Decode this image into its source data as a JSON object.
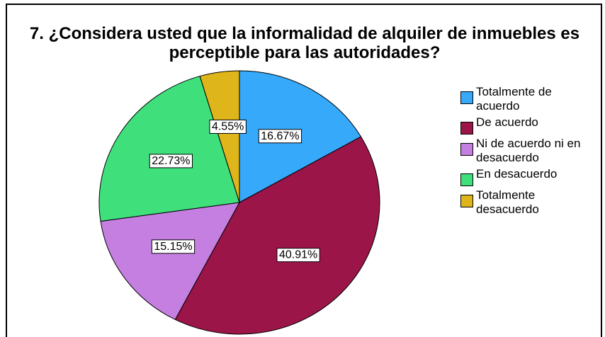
{
  "chart_data": {
    "type": "pie",
    "title": "7. ¿Considera usted que la informalidad de alquiler de inmuebles es perceptible para las autoridades?",
    "categories": [
      "Totalmente de acuerdo",
      "De acuerdo",
      "Ni de acuerdo ni en desacuerdo",
      "En desacuerdo",
      "Totalmente desacuerdo"
    ],
    "values": [
      16.67,
      40.91,
      15.15,
      22.73,
      4.55
    ],
    "value_labels": [
      "16.67%",
      "40.91%",
      "15.15%",
      "22.73%",
      "4.55%"
    ],
    "colors": [
      "#36a9fb",
      "#9c1548",
      "#c57fe0",
      "#3fe07c",
      "#dfb51c"
    ],
    "legend": "right"
  }
}
